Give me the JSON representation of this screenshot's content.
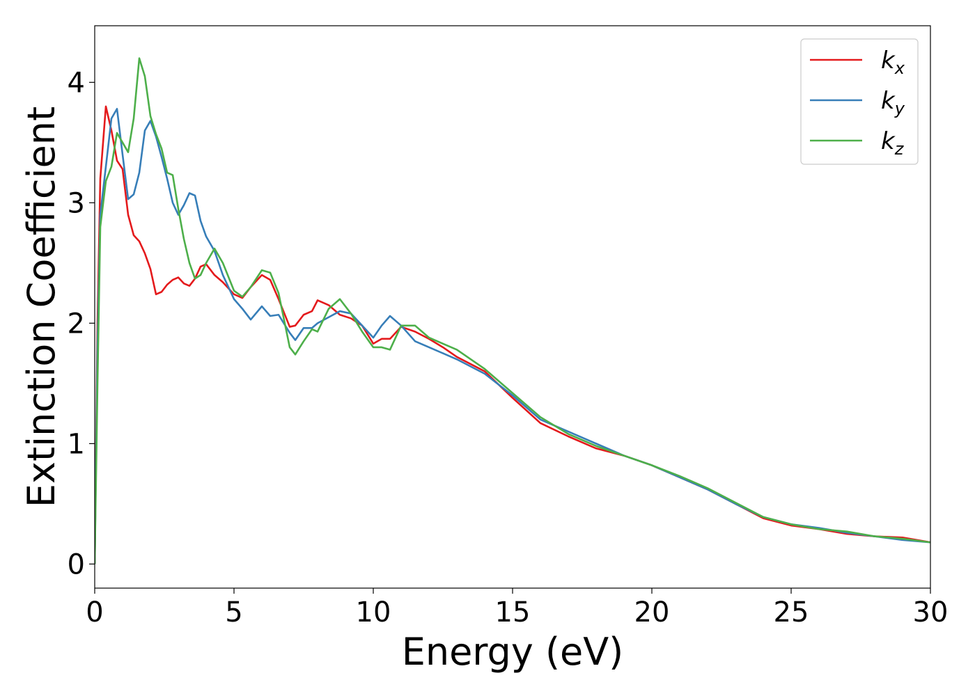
{
  "chart_data": {
    "type": "line",
    "xlabel": "Energy (eV)",
    "ylabel": "Extinction Coefficient",
    "xlim": [
      0,
      30
    ],
    "ylim": [
      -0.2,
      4.47
    ],
    "xticks": [
      0,
      5,
      10,
      15,
      20,
      25,
      30
    ],
    "yticks": [
      0,
      1,
      2,
      3,
      4
    ],
    "legend": "upper right",
    "x": [
      0,
      0.1,
      0.2,
      0.4,
      0.6,
      0.8,
      1.0,
      1.2,
      1.4,
      1.6,
      1.8,
      2.0,
      2.2,
      2.4,
      2.6,
      2.8,
      3.0,
      3.2,
      3.4,
      3.6,
      3.8,
      4.0,
      4.3,
      4.6,
      5.0,
      5.3,
      5.6,
      6.0,
      6.3,
      6.6,
      7.0,
      7.2,
      7.5,
      7.8,
      8.0,
      8.4,
      8.8,
      9.2,
      9.6,
      10.0,
      10.3,
      10.6,
      11.0,
      11.5,
      12,
      12.5,
      13,
      14,
      15,
      16,
      17,
      18,
      19,
      20,
      21,
      22,
      23,
      24,
      25,
      26,
      27,
      28,
      29,
      30
    ],
    "series": [
      {
        "name": "kx",
        "color": "#e41a1c",
        "values": [
          0,
          2.0,
          3.2,
          3.8,
          3.6,
          3.35,
          3.28,
          2.9,
          2.73,
          2.68,
          2.58,
          2.45,
          2.24,
          2.26,
          2.32,
          2.36,
          2.38,
          2.33,
          2.31,
          2.37,
          2.47,
          2.49,
          2.4,
          2.34,
          2.24,
          2.21,
          2.3,
          2.4,
          2.36,
          2.2,
          1.97,
          1.98,
          2.07,
          2.1,
          2.19,
          2.15,
          2.07,
          2.04,
          1.98,
          1.83,
          1.87,
          1.87,
          1.97,
          1.93,
          1.87,
          1.8,
          1.72,
          1.6,
          1.38,
          1.17,
          1.06,
          0.96,
          0.9,
          0.82,
          0.72,
          0.62,
          0.5,
          0.38,
          0.32,
          0.29,
          0.25,
          0.23,
          0.22,
          0.18
        ]
      },
      {
        "name": "ky",
        "color": "#377eb8",
        "values": [
          0,
          1.8,
          2.9,
          3.3,
          3.7,
          3.78,
          3.4,
          3.03,
          3.07,
          3.25,
          3.6,
          3.68,
          3.55,
          3.38,
          3.2,
          3.0,
          2.9,
          2.98,
          3.08,
          3.06,
          2.85,
          2.72,
          2.6,
          2.4,
          2.2,
          2.12,
          2.03,
          2.14,
          2.06,
          2.07,
          1.92,
          1.86,
          1.96,
          1.96,
          2.0,
          2.05,
          2.1,
          2.08,
          1.98,
          1.88,
          1.98,
          2.06,
          1.98,
          1.85,
          1.8,
          1.75,
          1.7,
          1.58,
          1.4,
          1.2,
          1.1,
          1.0,
          0.9,
          0.82,
          0.72,
          0.62,
          0.5,
          0.39,
          0.33,
          0.3,
          0.26,
          0.23,
          0.2,
          0.18
        ]
      },
      {
        "name": "kz",
        "color": "#4daf4a",
        "values": [
          0,
          1.5,
          2.8,
          3.18,
          3.3,
          3.58,
          3.5,
          3.42,
          3.7,
          4.2,
          4.05,
          3.72,
          3.57,
          3.45,
          3.25,
          3.23,
          2.95,
          2.7,
          2.5,
          2.37,
          2.4,
          2.5,
          2.62,
          2.5,
          2.27,
          2.22,
          2.3,
          2.44,
          2.42,
          2.25,
          1.8,
          1.74,
          1.85,
          1.95,
          1.93,
          2.12,
          2.2,
          2.08,
          1.93,
          1.8,
          1.8,
          1.78,
          1.98,
          1.98,
          1.88,
          1.83,
          1.78,
          1.62,
          1.42,
          1.22,
          1.08,
          0.98,
          0.9,
          0.82,
          0.73,
          0.63,
          0.51,
          0.39,
          0.33,
          0.29,
          0.27,
          0.23,
          0.21,
          0.18
        ]
      }
    ]
  }
}
